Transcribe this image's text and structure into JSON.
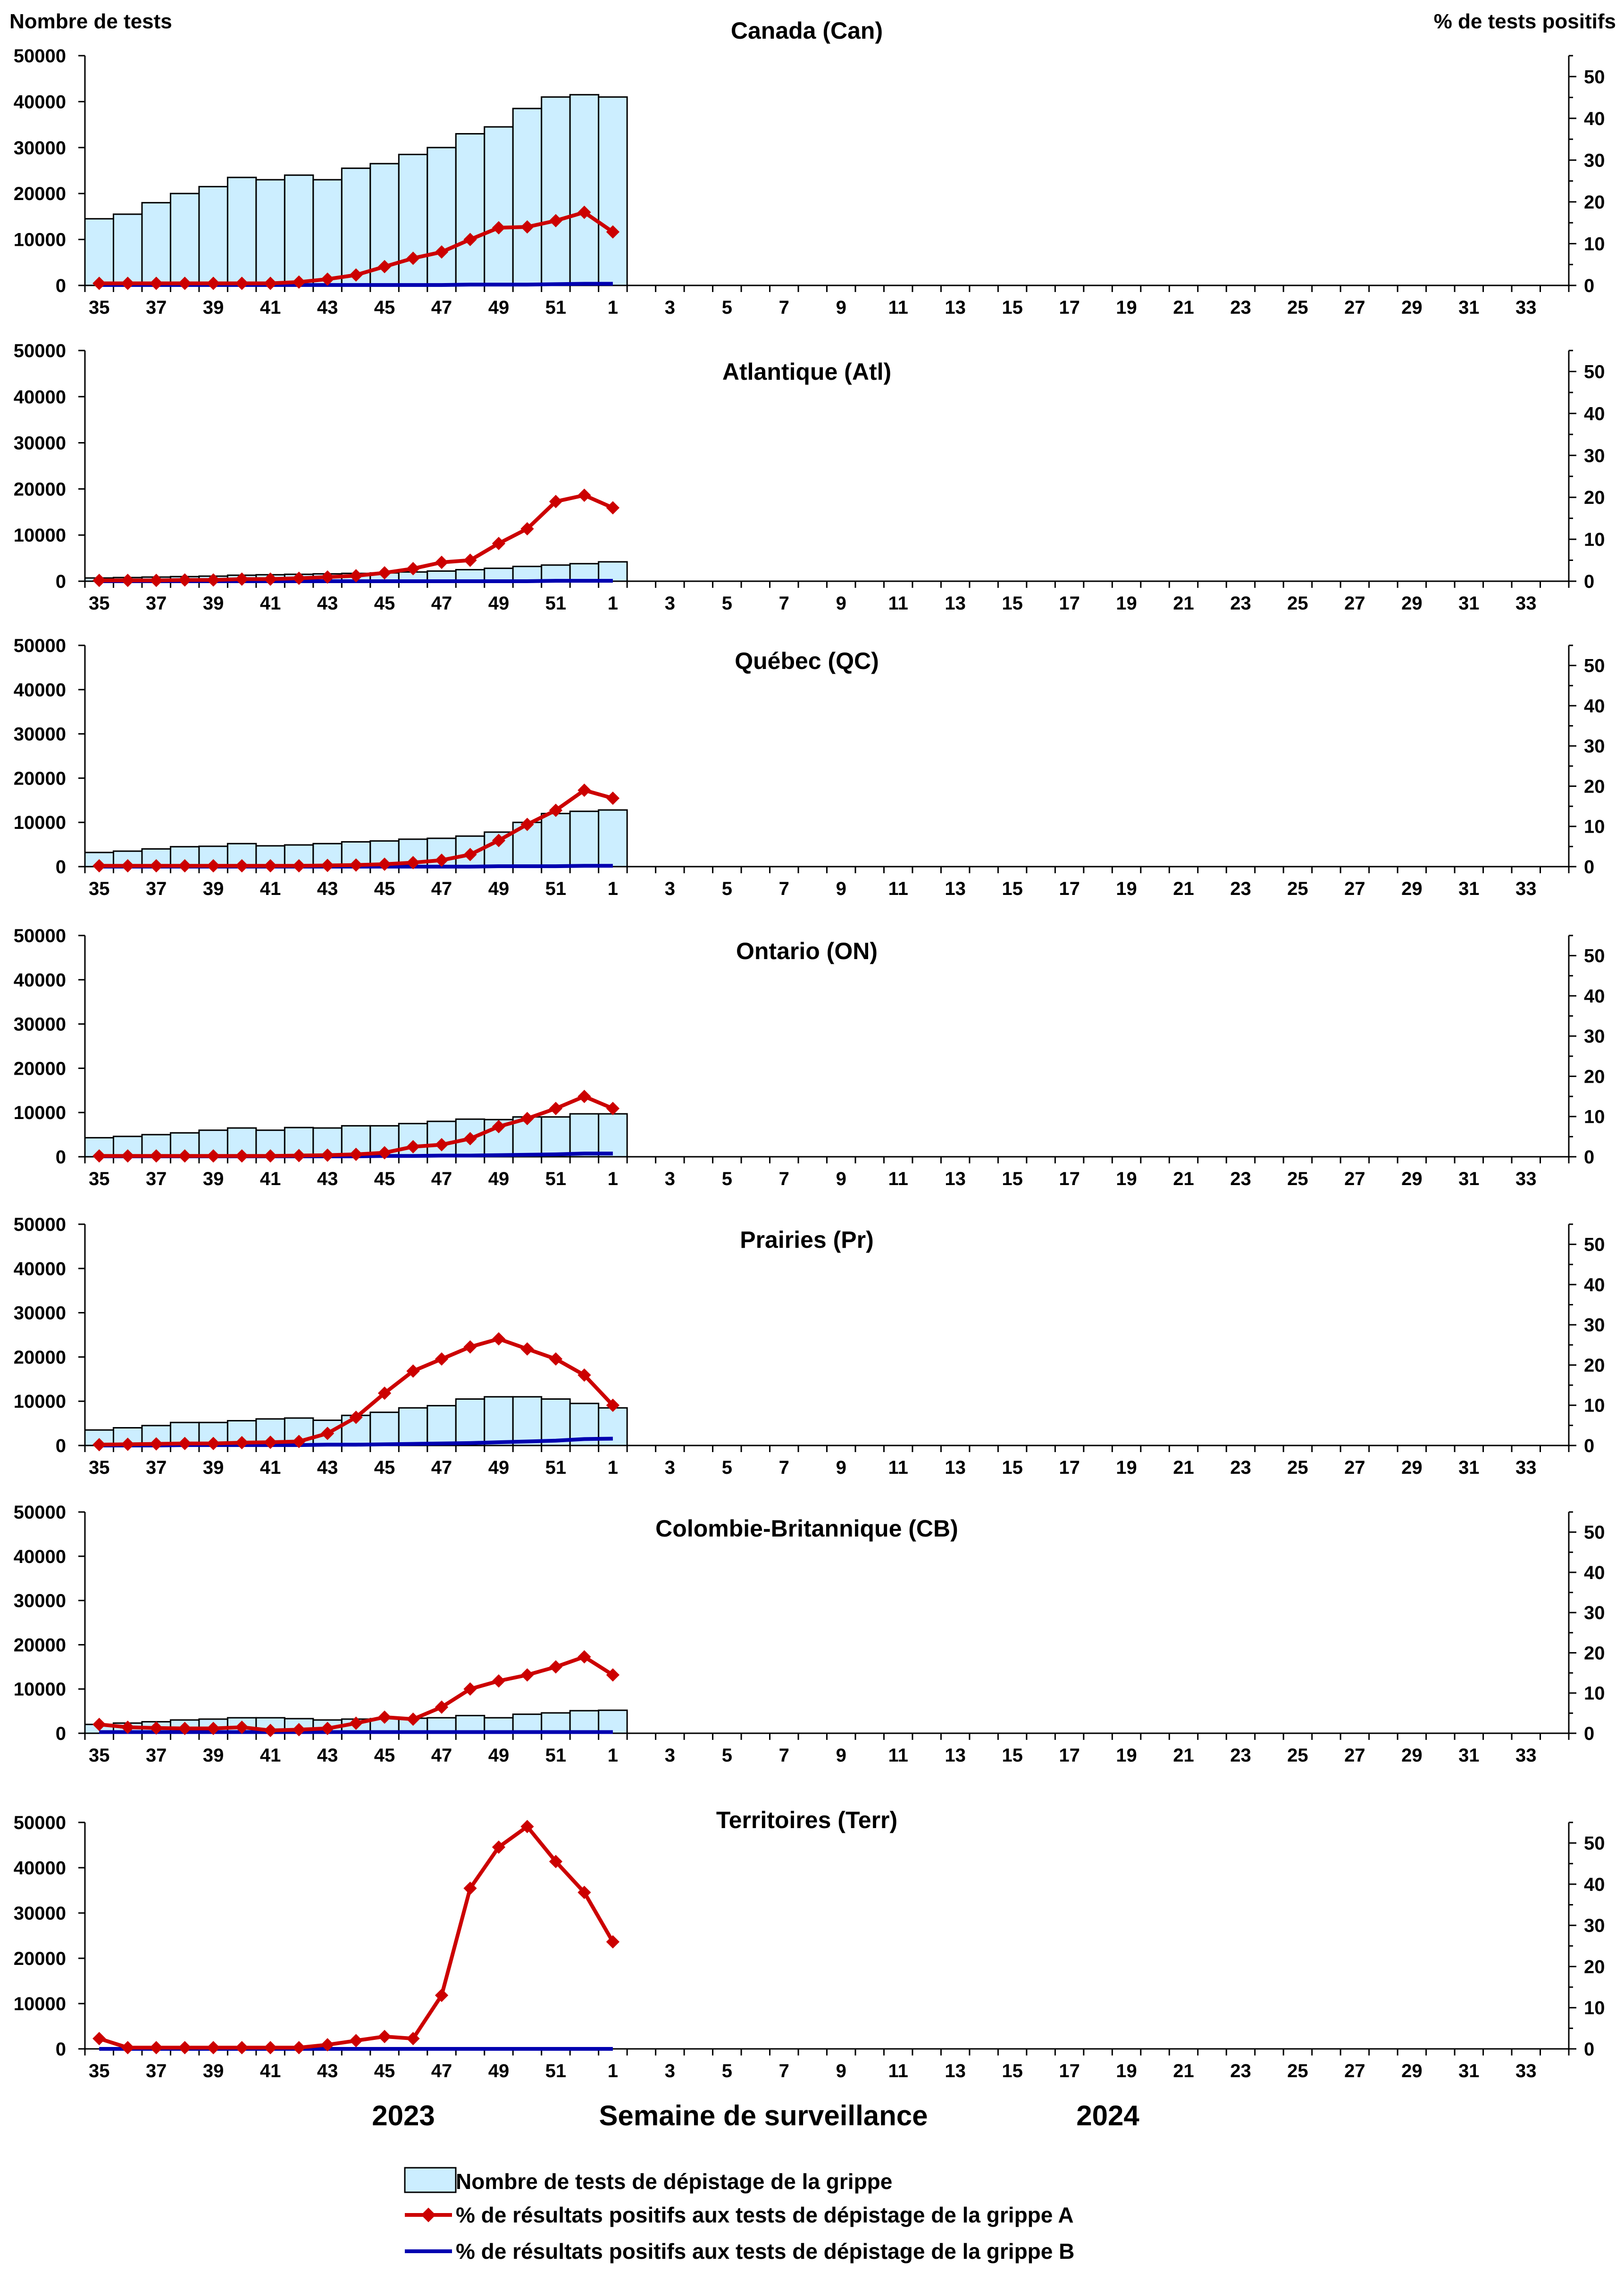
{
  "labels": {
    "left_axis_title": "Nombre de tests",
    "right_axis_title": "% de tests positifs",
    "x_axis_title": "Semaine de surveillance",
    "year_1": "2023",
    "year_2": "2024"
  },
  "legend": {
    "tests": "Nombre de tests de dépistage de la grippe",
    "flu_a": "% de résultats positifs aux tests de dépistage de la grippe A",
    "flu_b": "% de résultats positifs aux tests de dépistage de la grippe B"
  },
  "colors": {
    "bar_fill": "#cceeff",
    "flu_a": "#cc0000",
    "flu_b": "#0000b0"
  },
  "chart_data": {
    "type": "bar+line",
    "x": [
      35,
      36,
      37,
      38,
      39,
      40,
      41,
      42,
      43,
      44,
      45,
      46,
      47,
      48,
      49,
      50,
      51,
      52,
      1,
      2,
      3,
      4,
      5,
      6,
      7,
      8,
      9,
      10,
      11,
      12,
      13,
      14,
      15,
      16,
      17,
      18,
      19,
      20,
      21,
      22,
      23,
      24,
      25,
      26,
      27,
      28,
      29,
      30,
      31,
      32,
      33,
      34
    ],
    "x_tick_labels": [
      "35",
      "37",
      "39",
      "41",
      "43",
      "45",
      "47",
      "49",
      "51",
      "1",
      "3",
      "5",
      "7",
      "9",
      "11",
      "13",
      "15",
      "17",
      "19",
      "21",
      "23",
      "25",
      "27",
      "29",
      "31",
      "33"
    ],
    "left_ylim": [
      0,
      50000
    ],
    "left_yticks": [
      "0",
      "10000",
      "20000",
      "30000",
      "40000",
      "50000"
    ],
    "right_ylim": [
      0,
      55
    ],
    "right_yticks": [
      "0",
      "10",
      "20",
      "30",
      "40",
      "50"
    ],
    "panels": [
      {
        "title": "Canada (Can)",
        "tests": [
          14500,
          15500,
          18000,
          20000,
          21500,
          23500,
          23000,
          24000,
          23000,
          25500,
          26500,
          28500,
          30000,
          33000,
          34500,
          38500,
          41000,
          41500,
          41000
        ],
        "flu_a": [
          0.5,
          0.5,
          0.5,
          0.5,
          0.5,
          0.5,
          0.5,
          0.8,
          1.5,
          2.5,
          4.5,
          6.5,
          8,
          11,
          13.8,
          14,
          15.5,
          17.5,
          12.8
        ],
        "flu_b": [
          0.1,
          0.1,
          0.1,
          0.1,
          0.1,
          0.1,
          0.1,
          0.1,
          0.1,
          0.1,
          0.1,
          0.1,
          0.1,
          0.2,
          0.2,
          0.2,
          0.3,
          0.4,
          0.4
        ]
      },
      {
        "title": "Atlantique (Atl)",
        "tests": [
          700,
          800,
          900,
          1000,
          1100,
          1300,
          1400,
          1500,
          1600,
          1700,
          1800,
          2000,
          2200,
          2500,
          2800,
          3200,
          3500,
          3800,
          4200
        ],
        "flu_a": [
          0.2,
          0.2,
          0.2,
          0.3,
          0.3,
          0.5,
          0.5,
          0.7,
          1,
          1.3,
          2,
          3,
          4.5,
          5,
          9,
          12.5,
          19,
          20.5,
          17.5
        ],
        "flu_b": [
          0,
          0,
          0,
          0,
          0,
          0,
          0,
          0,
          0,
          0,
          0,
          0,
          0,
          0,
          0,
          0,
          0.1,
          0.1,
          0.1
        ]
      },
      {
        "title": "Québec (QC)",
        "tests": [
          3200,
          3500,
          4000,
          4500,
          4600,
          5200,
          4700,
          4900,
          5200,
          5600,
          5800,
          6200,
          6400,
          6900,
          7800,
          10000,
          12000,
          12500,
          12800
        ],
        "flu_a": [
          0.2,
          0.2,
          0.2,
          0.2,
          0.2,
          0.2,
          0.2,
          0.2,
          0.3,
          0.4,
          0.6,
          1,
          1.6,
          3,
          6.5,
          10.5,
          14,
          19,
          17
        ],
        "flu_b": [
          0,
          0,
          0,
          0,
          0,
          0,
          0,
          0,
          0,
          0,
          0,
          0,
          0,
          0,
          0.1,
          0.1,
          0.1,
          0.2,
          0.2
        ]
      },
      {
        "title": "Ontario (ON)",
        "tests": [
          4300,
          4600,
          5000,
          5400,
          6000,
          6500,
          6000,
          6600,
          6500,
          7000,
          7000,
          7500,
          8000,
          8500,
          8400,
          9000,
          9000,
          9700,
          9700
        ],
        "flu_a": [
          0.2,
          0.2,
          0.2,
          0.2,
          0.2,
          0.2,
          0.2,
          0.3,
          0.4,
          0.6,
          1,
          2.5,
          3,
          4.5,
          7.5,
          9.5,
          12,
          15,
          12
        ],
        "flu_b": [
          0.1,
          0.1,
          0.1,
          0.1,
          0.1,
          0.1,
          0.1,
          0.1,
          0.1,
          0.1,
          0.2,
          0.2,
          0.3,
          0.3,
          0.4,
          0.5,
          0.6,
          0.8,
          0.8
        ]
      },
      {
        "title": "Prairies (Pr)",
        "tests": [
          3500,
          4000,
          4500,
          5200,
          5200,
          5600,
          6000,
          6200,
          5700,
          6800,
          7500,
          8500,
          9000,
          10500,
          11000,
          11000,
          10500,
          9500,
          8500
        ],
        "flu_a": [
          0.2,
          0.3,
          0.4,
          0.5,
          0.5,
          0.7,
          0.8,
          1,
          3,
          7,
          13,
          18.5,
          21.5,
          24.5,
          26.5,
          24,
          21.5,
          17.5,
          10
        ],
        "flu_b": [
          0,
          0,
          0,
          0.1,
          0.1,
          0.1,
          0.1,
          0.1,
          0.2,
          0.2,
          0.3,
          0.4,
          0.5,
          0.6,
          0.8,
          1,
          1.2,
          1.6,
          1.7
        ]
      },
      {
        "title": "Colombie-Britannique (CB)",
        "tests": [
          2000,
          2300,
          2600,
          3000,
          3200,
          3500,
          3500,
          3300,
          3000,
          3200,
          3300,
          3400,
          3500,
          4000,
          3500,
          4300,
          4600,
          5100,
          5200
        ],
        "flu_a": [
          2.2,
          1.5,
          1.3,
          1.2,
          1.2,
          1.5,
          0.7,
          0.9,
          1.2,
          2.5,
          4,
          3.5,
          6.5,
          11,
          13,
          14.5,
          16.5,
          19,
          14.5
        ],
        "flu_b": [
          0.3,
          0.3,
          0.3,
          0.3,
          0.3,
          0.3,
          0.3,
          0.3,
          0.3,
          0.3,
          0.3,
          0.3,
          0.3,
          0.3,
          0.3,
          0.3,
          0.3,
          0.3,
          0.3
        ]
      },
      {
        "title": "Territoires (Terr)",
        "tests": [
          0,
          0,
          0,
          0,
          0,
          0,
          0,
          0,
          0,
          0,
          0,
          0,
          0,
          0,
          0,
          0,
          0,
          0,
          0
        ],
        "flu_a": [
          2.5,
          0.3,
          0.3,
          0.3,
          0.3,
          0.3,
          0.3,
          0.3,
          1,
          2,
          3,
          2.5,
          13,
          39,
          49,
          54,
          45.5,
          38,
          26
        ],
        "flu_b": [
          0,
          0,
          0,
          0,
          0,
          0,
          0,
          0,
          0,
          0,
          0,
          0,
          0,
          0,
          0,
          0,
          0,
          0,
          0
        ]
      }
    ]
  }
}
